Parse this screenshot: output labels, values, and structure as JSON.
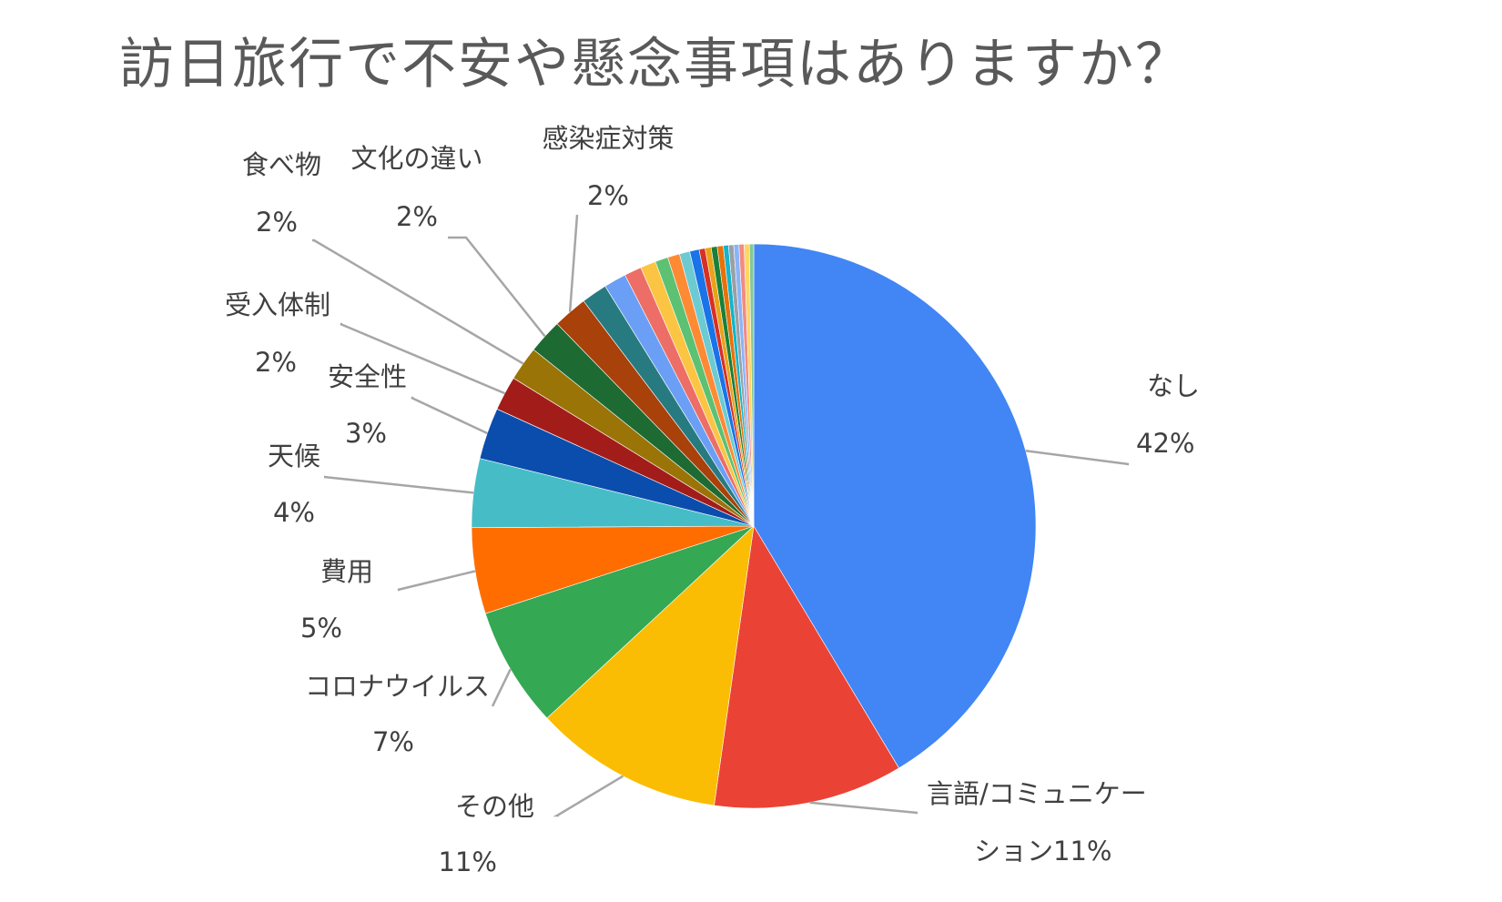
{
  "chart_data": {
    "type": "pie",
    "title": "訪日旅行で不安や懸念事項はありますか？",
    "slices": [
      {
        "name": "なし",
        "value": 42,
        "label_name": "なし",
        "label_pct": "42%",
        "color": "#4285f4"
      },
      {
        "name": "言語/コミュニケーション",
        "value": 11,
        "label_name": "言語/コミュニケー",
        "label_pct": "ション11%",
        "color": "#ea4335"
      },
      {
        "name": "その他",
        "value": 11,
        "label_name": "その他",
        "label_pct": "11%",
        "color": "#fbbc04"
      },
      {
        "name": "コロナウイルス",
        "value": 7,
        "label_name": "コロナウイルス",
        "label_pct": "7%",
        "color": "#34a853"
      },
      {
        "name": "費用",
        "value": 5,
        "label_name": "費用",
        "label_pct": "5%",
        "color": "#ff6d01"
      },
      {
        "name": "天候",
        "value": 4,
        "label_name": "天候",
        "label_pct": "4%",
        "color": "#46bdc6"
      },
      {
        "name": "安全性",
        "value": 3,
        "label_name": "安全性",
        "label_pct": "3%",
        "color": "#0b4dad"
      },
      {
        "name": "受入体制",
        "value": 2,
        "label_name": "受入体制",
        "label_pct": "2%",
        "color": "#a21d1a"
      },
      {
        "name": "食べ物",
        "value": 2,
        "label_name": "食べ物",
        "label_pct": "2%",
        "color": "#9a7407"
      },
      {
        "name": "文化の違い",
        "value": 2,
        "label_name": "文化の違い",
        "label_pct": "2%",
        "color": "#1e6a33"
      },
      {
        "name": "感染症対策",
        "value": 2,
        "label_name": "感染症対策",
        "label_pct": "2%",
        "color": "#a8410a"
      },
      {
        "name": "",
        "value": 1.5,
        "color": "#277b80"
      },
      {
        "name": "",
        "value": 1.3,
        "color": "#6b9ff5"
      },
      {
        "name": "",
        "value": 1.0,
        "color": "#ec6e66"
      },
      {
        "name": "",
        "value": 0.9,
        "color": "#fbc543"
      },
      {
        "name": "",
        "value": 0.75,
        "color": "#5cc172"
      },
      {
        "name": "",
        "value": 0.7,
        "color": "#ff8a34"
      },
      {
        "name": "",
        "value": 0.6,
        "color": "#6ccbd2"
      },
      {
        "name": "",
        "value": 0.55,
        "color": "#1a73e8"
      },
      {
        "name": "",
        "value": 0.35,
        "color": "#d93025"
      },
      {
        "name": "",
        "value": 0.35,
        "color": "#e8a317"
      },
      {
        "name": "",
        "value": 0.35,
        "color": "#188038"
      },
      {
        "name": "",
        "value": 0.35,
        "color": "#e8710a"
      },
      {
        "name": "",
        "value": 0.3,
        "color": "#12b5cb"
      },
      {
        "name": "",
        "value": 0.3,
        "color": "#9aa0a6"
      },
      {
        "name": "",
        "value": 0.3,
        "color": "#8ab4f8"
      },
      {
        "name": "",
        "value": 0.3,
        "color": "#f28b82"
      },
      {
        "name": "",
        "value": 0.3,
        "color": "#fdd663"
      },
      {
        "name": "",
        "value": 0.25,
        "color": "#81c995"
      }
    ]
  }
}
